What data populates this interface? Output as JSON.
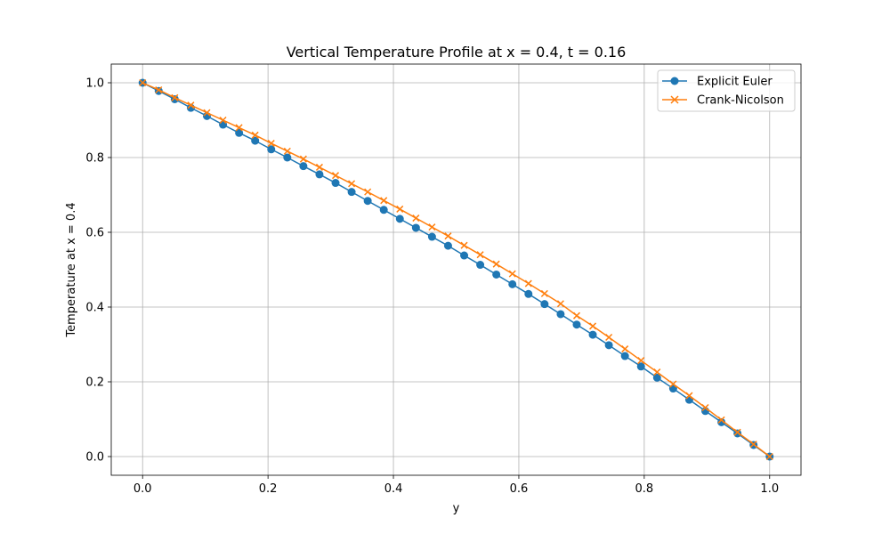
{
  "chart_data": {
    "type": "line",
    "title": "Vertical Temperature Profile at x = 0.4, t = 0.16",
    "xlabel": "y",
    "ylabel": "Temperature at x = 0.4",
    "xlim": [
      -0.05,
      1.05
    ],
    "ylim": [
      -0.05,
      1.05
    ],
    "xticks": [
      0.0,
      0.2,
      0.4,
      0.6,
      0.8,
      1.0
    ],
    "yticks": [
      0.0,
      0.2,
      0.4,
      0.6,
      0.8,
      1.0
    ],
    "xtick_labels": [
      "0.0",
      "0.2",
      "0.4",
      "0.6",
      "0.8",
      "1.0"
    ],
    "ytick_labels": [
      "0.0",
      "0.2",
      "0.4",
      "0.6",
      "0.8",
      "1.0"
    ],
    "grid": true,
    "legend_position": "top-right",
    "x": [
      0.0,
      0.025641,
      0.051282,
      0.076923,
      0.102564,
      0.128205,
      0.153846,
      0.179487,
      0.205128,
      0.230769,
      0.25641,
      0.282051,
      0.307692,
      0.333333,
      0.358974,
      0.384615,
      0.410256,
      0.435897,
      0.461538,
      0.487179,
      0.512821,
      0.538462,
      0.564103,
      0.589744,
      0.615385,
      0.641026,
      0.666667,
      0.692308,
      0.717949,
      0.74359,
      0.769231,
      0.794872,
      0.820513,
      0.846154,
      0.871795,
      0.897436,
      0.923077,
      0.948718,
      0.974359,
      1.0
    ],
    "series": [
      {
        "name": "Explicit Euler",
        "color": "#1f77b4",
        "marker": "circle",
        "values": [
          1.0,
          0.978,
          0.956,
          0.933,
          0.911,
          0.888,
          0.866,
          0.845,
          0.822,
          0.8,
          0.777,
          0.755,
          0.732,
          0.708,
          0.684,
          0.66,
          0.636,
          0.612,
          0.588,
          0.564,
          0.538,
          0.513,
          0.487,
          0.461,
          0.435,
          0.408,
          0.381,
          0.353,
          0.326,
          0.298,
          0.269,
          0.241,
          0.211,
          0.182,
          0.152,
          0.122,
          0.092,
          0.062,
          0.031,
          0.0
        ]
      },
      {
        "name": "Crank-Nicolson",
        "color": "#ff7f0e",
        "marker": "x",
        "values": [
          1.0,
          0.981,
          0.96,
          0.94,
          0.92,
          0.9,
          0.88,
          0.86,
          0.838,
          0.817,
          0.796,
          0.774,
          0.752,
          0.73,
          0.708,
          0.685,
          0.662,
          0.638,
          0.614,
          0.59,
          0.565,
          0.54,
          0.515,
          0.489,
          0.463,
          0.436,
          0.409,
          0.377,
          0.349,
          0.319,
          0.288,
          0.257,
          0.226,
          0.194,
          0.163,
          0.131,
          0.098,
          0.065,
          0.033,
          0.0
        ]
      }
    ]
  }
}
